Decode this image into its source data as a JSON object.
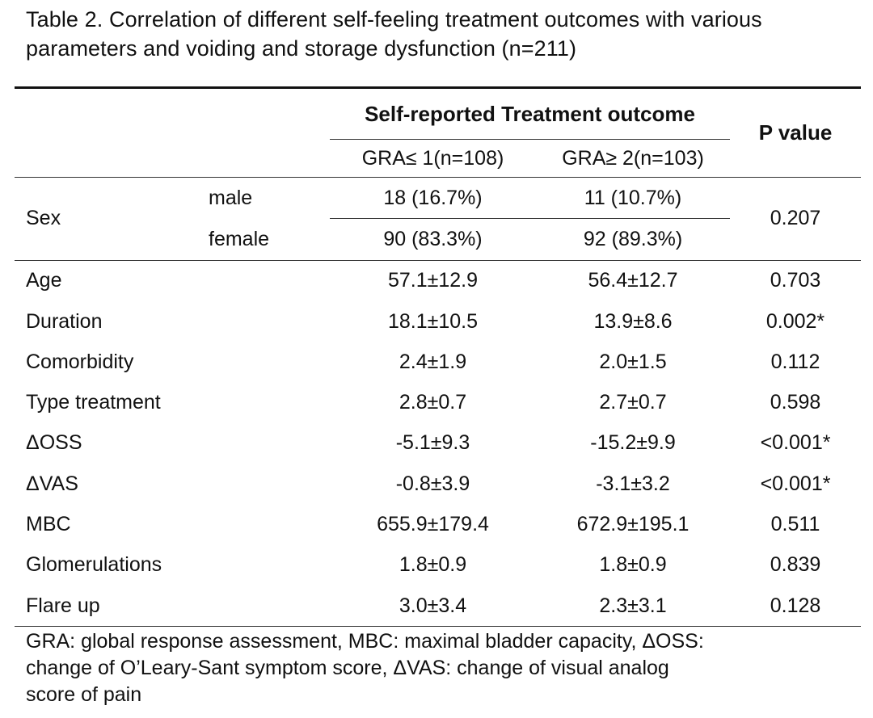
{
  "caption": {
    "line1": "Table 2. Correlation of different self-feeling treatment outcomes with various",
    "line2": "parameters and voiding and storage dysfunction (n=211)"
  },
  "table": {
    "group_header": "Self-reported Treatment outcome",
    "pvalue_header": "P value",
    "col_gra1": "GRA≤ 1(n=108)",
    "col_gra2": "GRA≥ 2(n=103)",
    "sex": {
      "label": "Sex",
      "pvalue": "0.207",
      "rows": [
        {
          "sub": "male",
          "gra1": "18 (16.7%)",
          "gra2": "11 (10.7%)"
        },
        {
          "sub": "female",
          "gra1": "90 (83.3%)",
          "gra2": "92 (89.3%)"
        }
      ]
    },
    "rows": [
      {
        "label": "Age",
        "gra1": "57.1±12.9",
        "gra2": "56.4±12.7",
        "pvalue": "0.703"
      },
      {
        "label": "Duration",
        "gra1": "18.1±10.5",
        "gra2": "13.9±8.6",
        "pvalue": "0.002*"
      },
      {
        "label": "Comorbidity",
        "gra1": "2.4±1.9",
        "gra2": "2.0±1.5",
        "pvalue": "0.112"
      },
      {
        "label": "Type treatment",
        "gra1": "2.8±0.7",
        "gra2": "2.7±0.7",
        "pvalue": "0.598"
      },
      {
        "label": "ΔOSS",
        "gra1": "-5.1±9.3",
        "gra2": "-15.2±9.9",
        "pvalue": "<0.001*"
      },
      {
        "label": "ΔVAS",
        "gra1": "-0.8±3.9",
        "gra2": "-3.1±3.2",
        "pvalue": "<0.001*"
      },
      {
        "label": "MBC",
        "gra1": "655.9±179.4",
        "gra2": "672.9±195.1",
        "pvalue": "0.511"
      },
      {
        "label": "Glomerulations",
        "gra1": "1.8±0.9",
        "gra2": "1.8±0.9",
        "pvalue": "0.839"
      },
      {
        "label": "Flare up",
        "gra1": "3.0±3.4",
        "gra2": "2.3±3.1",
        "pvalue": "0.128"
      }
    ]
  },
  "footnote": {
    "line1": "GRA: global response assessment, MBC: maximal bladder capacity, ΔOSS:",
    "line2": "change of O’Leary-Sant symptom score, ΔVAS: change of visual analog",
    "line3": "score of pain"
  }
}
